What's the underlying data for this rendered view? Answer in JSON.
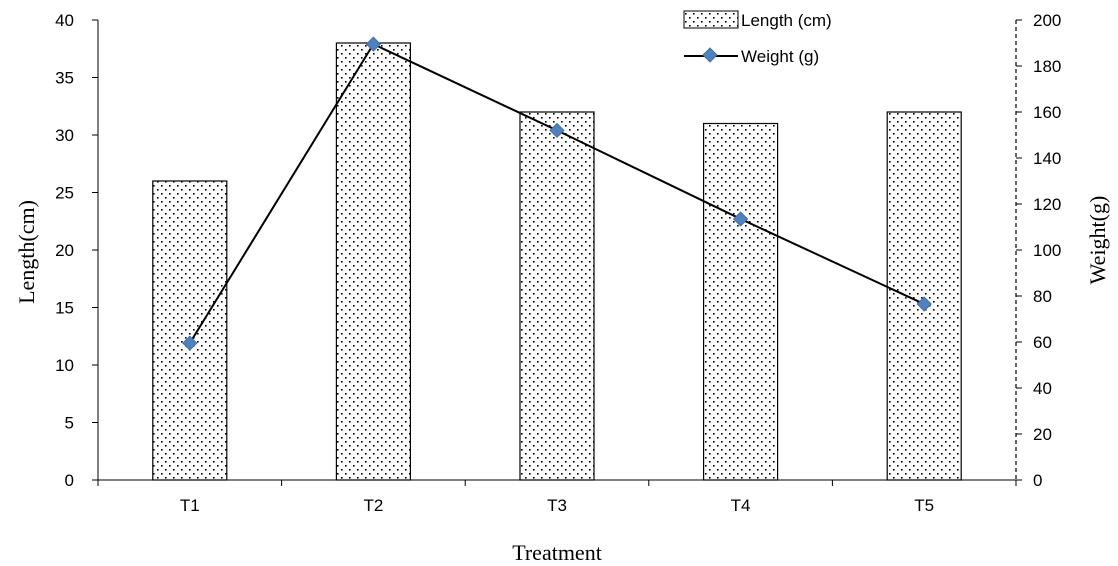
{
  "chart_data": {
    "type": "bar",
    "categories": [
      "T1",
      "T2",
      "T3",
      "T4",
      "T5"
    ],
    "series": [
      {
        "name": "Length (cm)",
        "type": "bar",
        "axis": "left",
        "values": [
          26,
          38,
          32,
          31,
          32
        ]
      },
      {
        "name": "Weight (g)",
        "type": "line",
        "axis": "right",
        "values": [
          59.5,
          189.5,
          152,
          113.5,
          76.5
        ]
      }
    ],
    "xlabel": "Treatment",
    "ylabel": "Length(cm)",
    "y2label": "Weight(g)",
    "ylim": [
      0,
      40
    ],
    "y2lim": [
      0,
      200
    ],
    "yticks": [
      "0",
      "5",
      "10",
      "15",
      "20",
      "25",
      "30",
      "35",
      "40"
    ],
    "y2ticks": [
      "0",
      "20",
      "40",
      "60",
      "80",
      "100",
      "120",
      "140",
      "160",
      "180",
      "200"
    ],
    "grid": false,
    "legend_position": "top-right",
    "colors": {
      "bar_fill": "#ffffff",
      "bar_dots": "#000000",
      "line": "#000000",
      "marker": "#4f81bd"
    }
  }
}
